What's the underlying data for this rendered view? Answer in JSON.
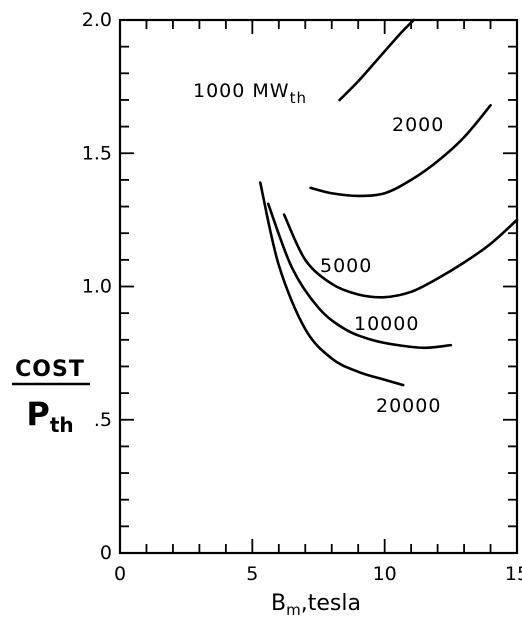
{
  "chart_data": {
    "type": "line",
    "title": "",
    "xlabel": "B_m, tesla",
    "xlabel_parts": {
      "main": "B",
      "sub": "m",
      "rest": ",tesla"
    },
    "ylabel_top": "COST",
    "ylabel_bottom": {
      "main": "P",
      "sub": "th"
    },
    "xlim": [
      0,
      15
    ],
    "ylim": [
      0,
      2.0
    ],
    "xticks": [
      0,
      5,
      10,
      15
    ],
    "xtick_labels": [
      "0",
      "5",
      "10",
      "15"
    ],
    "yticks": [
      0,
      0.5,
      1.0,
      1.5,
      2.0
    ],
    "ytick_labels": [
      "0",
      ".5",
      "1.0",
      "1.5",
      "2.0"
    ],
    "grid": false,
    "series": [
      {
        "name": "1000 MWth",
        "label": {
          "main": "1000 MW",
          "sub": "th"
        },
        "x": [
          8.3,
          9.0,
          9.8,
          10.6,
          11.1
        ],
        "y": [
          1.7,
          1.77,
          1.86,
          1.95,
          2.0
        ]
      },
      {
        "name": "2000",
        "label": {
          "main": "2000"
        },
        "x": [
          7.2,
          8.0,
          9.0,
          10.0,
          11.0,
          12.0,
          13.0,
          14.0
        ],
        "y": [
          1.37,
          1.35,
          1.34,
          1.35,
          1.4,
          1.47,
          1.56,
          1.68
        ]
      },
      {
        "name": "5000",
        "label": {
          "main": "5000"
        },
        "x": [
          6.2,
          7.0,
          8.0,
          9.0,
          10.0,
          11.0,
          12.0,
          13.0,
          14.0,
          15.0
        ],
        "y": [
          1.27,
          1.1,
          1.01,
          0.97,
          0.96,
          0.98,
          1.03,
          1.09,
          1.16,
          1.25
        ]
      },
      {
        "name": "10000",
        "label": {
          "main": "10000"
        },
        "x": [
          5.6,
          6.5,
          7.5,
          8.5,
          9.5,
          10.5,
          11.5,
          12.5
        ],
        "y": [
          1.31,
          1.07,
          0.92,
          0.84,
          0.8,
          0.78,
          0.77,
          0.78
        ]
      },
      {
        "name": "20000",
        "label": {
          "main": "20000"
        },
        "x": [
          5.3,
          6.0,
          7.0,
          8.0,
          9.0,
          10.0,
          10.7
        ],
        "y": [
          1.39,
          1.08,
          0.84,
          0.73,
          0.68,
          0.65,
          0.63
        ]
      }
    ]
  }
}
